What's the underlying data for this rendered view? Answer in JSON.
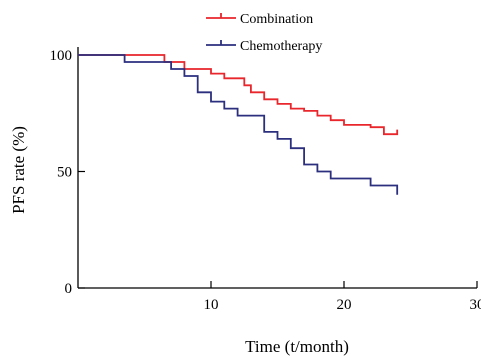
{
  "chart_data": {
    "type": "line",
    "xlabel": "Time (t/month)",
    "ylabel": "PFS rate (%)",
    "xlim": [
      0,
      30
    ],
    "ylim": [
      0,
      100
    ],
    "xticks": [
      10,
      20,
      30
    ],
    "yticks": [
      0,
      50,
      100
    ],
    "grid": false,
    "legend_position": "top-center",
    "series": [
      {
        "name": "Combination",
        "color": "#e8262b",
        "step": true,
        "points": [
          [
            0,
            100
          ],
          [
            6.5,
            100
          ],
          [
            6.5,
            97
          ],
          [
            8,
            97
          ],
          [
            8,
            94
          ],
          [
            10,
            94
          ],
          [
            10,
            92
          ],
          [
            11,
            92
          ],
          [
            11,
            90
          ],
          [
            12.5,
            90
          ],
          [
            12.5,
            87
          ],
          [
            13,
            87
          ],
          [
            13,
            84
          ],
          [
            14,
            84
          ],
          [
            14,
            81
          ],
          [
            15,
            81
          ],
          [
            15,
            79
          ],
          [
            16,
            79
          ],
          [
            16,
            77
          ],
          [
            17,
            77
          ],
          [
            17,
            76
          ],
          [
            18,
            76
          ],
          [
            18,
            74
          ],
          [
            19,
            74
          ],
          [
            19,
            72
          ],
          [
            20,
            72
          ],
          [
            20,
            70
          ],
          [
            22,
            70
          ],
          [
            22,
            69
          ],
          [
            23,
            69
          ],
          [
            23,
            66
          ],
          [
            24,
            66
          ],
          [
            24,
            68
          ]
        ]
      },
      {
        "name": "Chemotherapy",
        "color": "#2b2f7e",
        "step": true,
        "points": [
          [
            0,
            100
          ],
          [
            3.5,
            100
          ],
          [
            3.5,
            97
          ],
          [
            7,
            97
          ],
          [
            7,
            94
          ],
          [
            8,
            94
          ],
          [
            8,
            91
          ],
          [
            9,
            91
          ],
          [
            9,
            84
          ],
          [
            10,
            84
          ],
          [
            10,
            80
          ],
          [
            11,
            80
          ],
          [
            11,
            77
          ],
          [
            12,
            77
          ],
          [
            12,
            74
          ],
          [
            14,
            74
          ],
          [
            14,
            67
          ],
          [
            15,
            67
          ],
          [
            15,
            64
          ],
          [
            16,
            64
          ],
          [
            16,
            60
          ],
          [
            17,
            60
          ],
          [
            17,
            53
          ],
          [
            18,
            53
          ],
          [
            18,
            50
          ],
          [
            19,
            50
          ],
          [
            19,
            47
          ],
          [
            22,
            47
          ],
          [
            22,
            44
          ],
          [
            24,
            44
          ],
          [
            24,
            40
          ]
        ]
      }
    ]
  }
}
